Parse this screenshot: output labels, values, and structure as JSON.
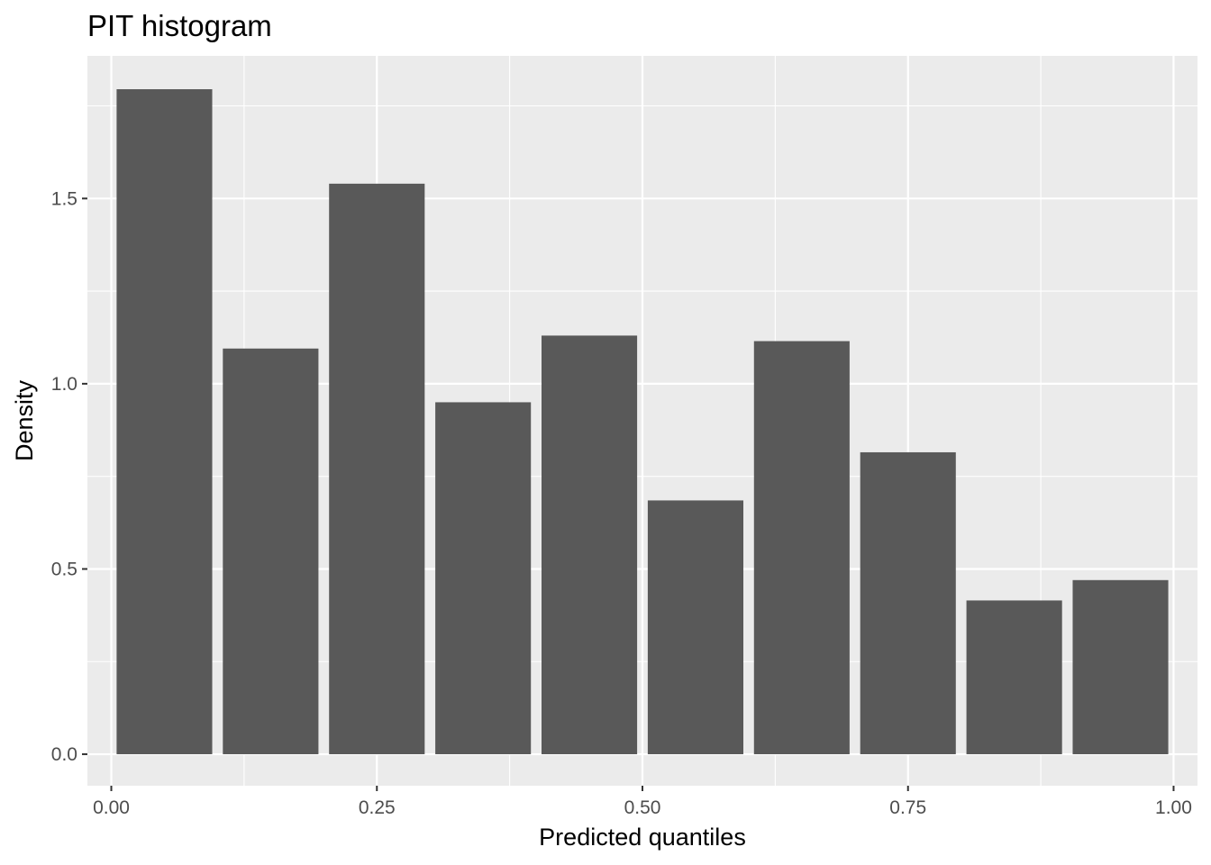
{
  "chart_data": {
    "type": "bar",
    "title": "PIT histogram",
    "xlabel": "Predicted quantiles",
    "ylabel": "Density",
    "xlim": [
      -0.0225,
      1.0225
    ],
    "ylim": [
      -0.085,
      1.885
    ],
    "x_ticks": [
      0.0,
      0.25,
      0.5,
      0.75,
      1.0
    ],
    "x_tick_labels": [
      "0.00",
      "0.25",
      "0.50",
      "0.75",
      "1.00"
    ],
    "y_ticks": [
      0.0,
      0.5,
      1.0,
      1.5
    ],
    "y_tick_labels": [
      "0.0",
      "0.5",
      "1.0",
      "1.5"
    ],
    "bins": [
      [
        0.0,
        0.1
      ],
      [
        0.1,
        0.2
      ],
      [
        0.2,
        0.3
      ],
      [
        0.3,
        0.4
      ],
      [
        0.4,
        0.5
      ],
      [
        0.5,
        0.6
      ],
      [
        0.6,
        0.7
      ],
      [
        0.7,
        0.8
      ],
      [
        0.8,
        0.9
      ],
      [
        0.9,
        1.0
      ]
    ],
    "values": [
      1.795,
      1.095,
      1.54,
      0.95,
      1.13,
      0.685,
      1.115,
      0.815,
      0.415,
      0.47
    ],
    "bar_color": "#595959",
    "panel_background": "#ebebeb",
    "grid": true,
    "grid_color": "#ffffff"
  }
}
